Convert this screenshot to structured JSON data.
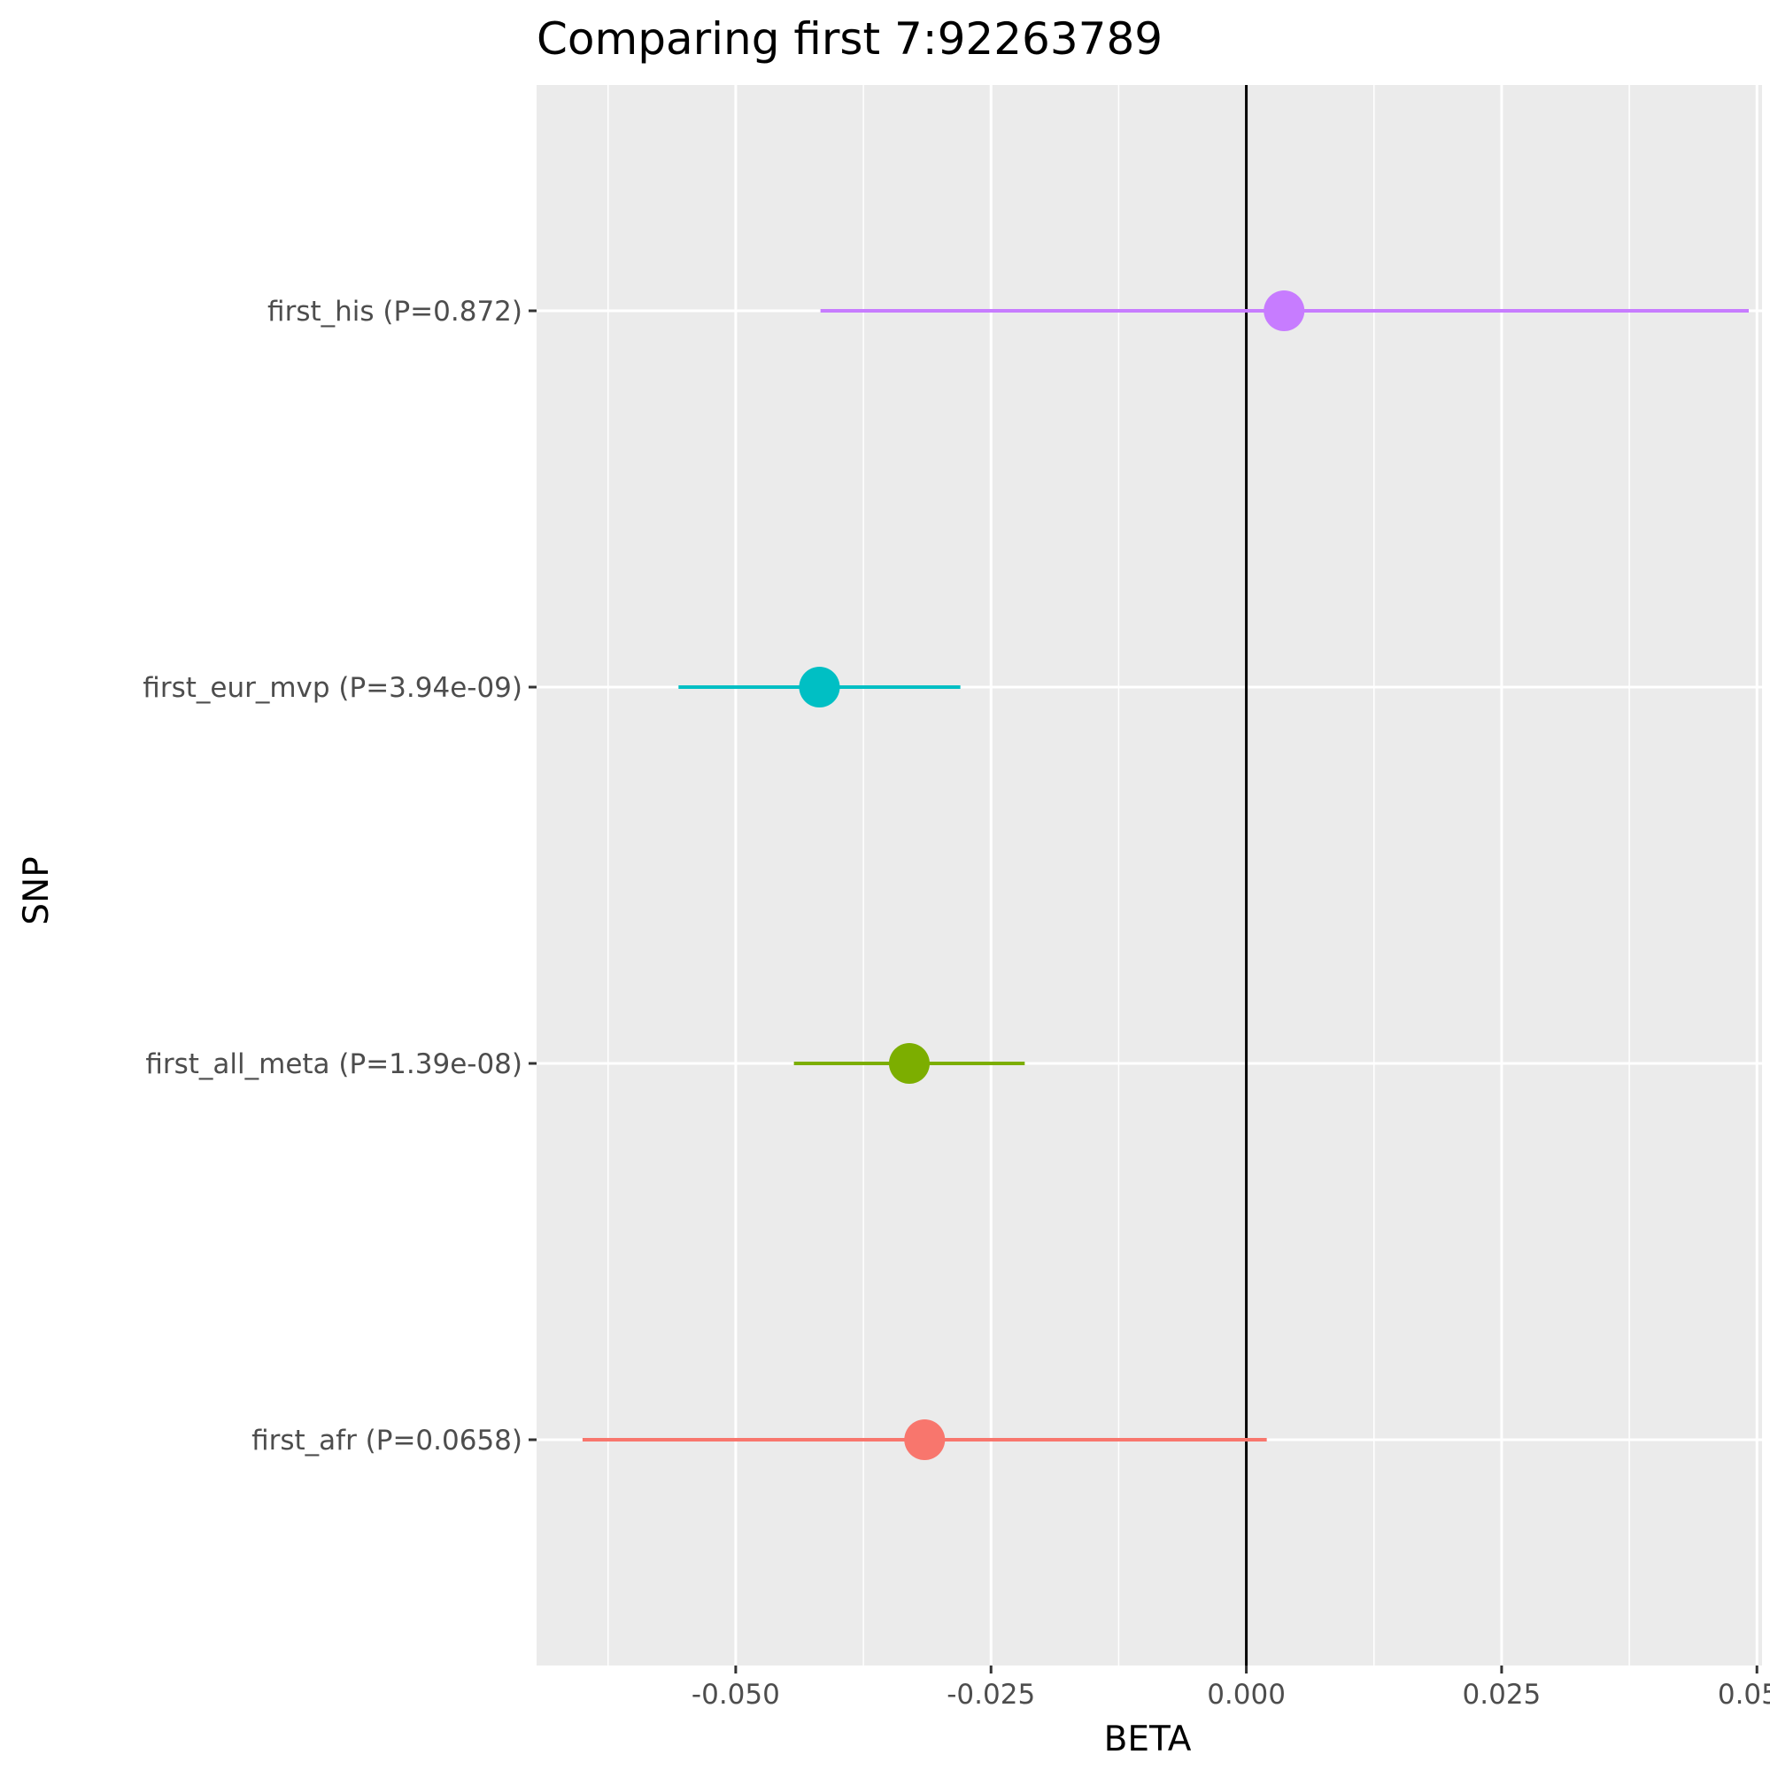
{
  "chart_data": {
    "type": "forest",
    "title": "Comparing first 7:92263789",
    "xlabel": "BETA",
    "ylabel": "SNP",
    "xlim": [
      -0.0695,
      0.0505
    ],
    "x_ticks": [
      -0.05,
      -0.025,
      0.0,
      0.025,
      0.05
    ],
    "x_tick_labels": [
      "-0.050",
      "-0.025",
      "0.000",
      "0.025",
      "0.050"
    ],
    "reference_line_x": 0.0,
    "grid": true,
    "legend": "none",
    "rows": [
      {
        "label": "first_afr (P=0.0658)",
        "beta": -0.0315,
        "ci_low": -0.065,
        "ci_high": 0.002,
        "color": "#F8766D"
      },
      {
        "label": "first_all_meta (P=1.39e-08)",
        "beta": -0.033,
        "ci_low": -0.0443,
        "ci_high": -0.0217,
        "color": "#7CAE00"
      },
      {
        "label": "first_eur_mvp (P=3.94e-09)",
        "beta": -0.0418,
        "ci_low": -0.0556,
        "ci_high": -0.028,
        "color": "#00BFC4"
      },
      {
        "label": "first_his (P=0.872)",
        "beta": 0.0037,
        "ci_low": -0.0417,
        "ci_high": 0.0492,
        "color": "#C77CFF"
      }
    ]
  }
}
